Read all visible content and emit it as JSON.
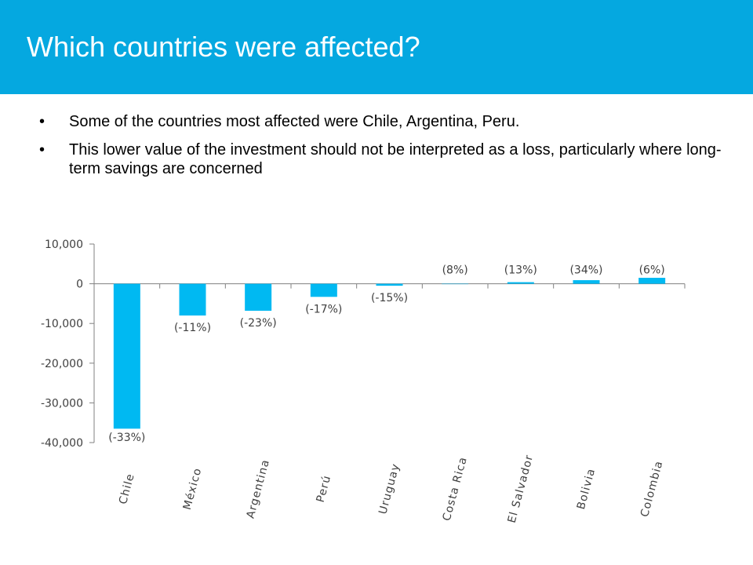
{
  "slide": {
    "title": "Which countries were affected?",
    "bullets": [
      "Some of the countries most affected were Chile, Argentina, Peru.",
      "This lower value of the investment should not be interpreted as a loss, particularly  where long-term savings are concerned"
    ],
    "bullet_glyph": "•",
    "header_color": "#05A8E0"
  },
  "chart_data": {
    "type": "bar",
    "title": "",
    "xlabel": "",
    "ylabel": "",
    "ylim": [
      -40000,
      10000
    ],
    "yticks": [
      10000,
      0,
      -10000,
      -20000,
      -30000,
      -40000
    ],
    "ytick_labels": [
      "10,000",
      "0",
      "-10,000",
      "-20,000",
      "-30,000",
      "-40,000"
    ],
    "categories": [
      "Chile",
      "México",
      "Argentina",
      "Perú",
      "Uruguay",
      "Costa Rica",
      "El Salvador",
      "Bolivia",
      "Colombia"
    ],
    "values": [
      -36500,
      -8000,
      -6800,
      -3300,
      -500,
      0,
      400,
      900,
      1500
    ],
    "data_labels": [
      "(-33%)",
      "(-11%)",
      "(-23%)",
      "(-17%)",
      "(-15%)",
      "(8%)",
      "(13%)",
      "(34%)",
      "(6%)"
    ],
    "bar_color": "#00B9F2",
    "grid": false,
    "legend": "none"
  }
}
